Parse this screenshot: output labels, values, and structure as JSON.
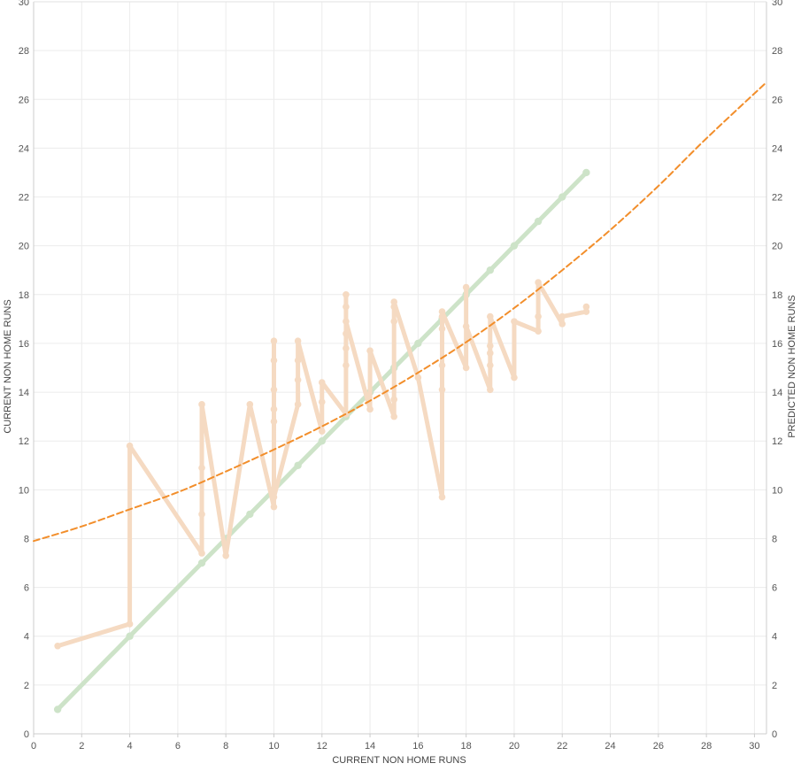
{
  "chart_data": {
    "type": "line",
    "xlabel": "CURRENT NON HOME RUNS",
    "ylabel": "CURRENT NON HOME RUNS",
    "ylabel_right": "PREDICTED NON HOME RUNS",
    "xlim": [
      0,
      30.5
    ],
    "ylim": [
      0,
      30
    ],
    "x_ticks": [
      "0",
      "2",
      "4",
      "6",
      "8",
      "10",
      "12",
      "14",
      "16",
      "18",
      "20",
      "22",
      "24",
      "26",
      "28",
      "30"
    ],
    "y_ticks": [
      "0",
      "2",
      "4",
      "6",
      "8",
      "10",
      "12",
      "14",
      "16",
      "18",
      "20",
      "22",
      "24",
      "26",
      "28",
      "30"
    ],
    "grid": true,
    "colors": {
      "identity": "#cde3c8",
      "predicted": "#f5dac2",
      "trend": "#f28e2b",
      "grid": "#ececec",
      "axis": "#cccccc"
    },
    "series": [
      {
        "key": "identity",
        "x": [
          1,
          4,
          7,
          8,
          9,
          10,
          11,
          12,
          13,
          14,
          15,
          16,
          17,
          18,
          19,
          20,
          21,
          22,
          23
        ],
        "y": [
          1,
          4,
          7,
          8,
          9,
          10,
          11,
          12,
          13,
          14,
          15,
          16,
          17,
          18,
          19,
          20,
          21,
          22,
          23
        ]
      },
      {
        "key": "predicted",
        "x": [
          1,
          4,
          4,
          7,
          7,
          7,
          7,
          8,
          9,
          10,
          10,
          10,
          10,
          10,
          10,
          10,
          11,
          11,
          11,
          11,
          12,
          12,
          12,
          13,
          13,
          13,
          13,
          13,
          13,
          13,
          14,
          14,
          15,
          15,
          15,
          15,
          15,
          16,
          17,
          17,
          17,
          17,
          17,
          17,
          18,
          18,
          18,
          19,
          19,
          19,
          19,
          19,
          20,
          20,
          21,
          21,
          21,
          22,
          22,
          23,
          23
        ],
        "y": [
          3.6,
          4.5,
          11.8,
          7.4,
          9.0,
          10.9,
          13.5,
          7.3,
          13.5,
          9.3,
          12.8,
          13.3,
          14.1,
          15.3,
          16.1,
          9.7,
          13.5,
          14.5,
          15.3,
          16.1,
          12.4,
          13.6,
          14.4,
          13.1,
          15.1,
          15.8,
          16.4,
          17.5,
          18.0,
          16.9,
          13.3,
          15.7,
          13.0,
          13.7,
          16.9,
          17.5,
          17.7,
          14.6,
          9.7,
          14.1,
          15.1,
          16.6,
          17.1,
          17.3,
          15.0,
          18.3,
          16.7,
          14.1,
          15.1,
          15.6,
          15.9,
          17.1,
          14.6,
          16.9,
          16.5,
          17.1,
          18.5,
          16.8,
          17.1,
          17.3,
          17.5
        ]
      },
      {
        "key": "trend",
        "x": [
          0,
          2,
          4,
          6,
          8,
          10,
          12,
          14,
          16,
          18,
          20,
          22,
          24,
          26,
          28,
          30.5
        ],
        "y": [
          7.9,
          8.5,
          9.2,
          9.9,
          10.75,
          11.65,
          12.6,
          13.65,
          14.8,
          16.05,
          17.45,
          19.0,
          20.65,
          22.45,
          24.4,
          26.7
        ]
      }
    ]
  }
}
